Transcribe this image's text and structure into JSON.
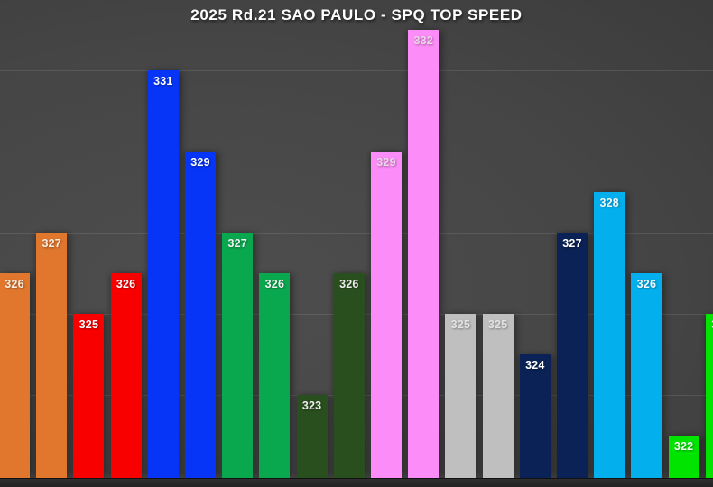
{
  "chart_data": {
    "type": "bar",
    "title": "2025 Rd.21 SAO PAULO - SPQ TOP SPEED",
    "xlabel": "",
    "ylabel": "",
    "ylim": [
      321,
      333
    ],
    "gridline_values": [
      331,
      329,
      327,
      325,
      323
    ],
    "grid": "horizontal-only",
    "legend_position": "none",
    "x_tick_labels": "none",
    "y_tick_labels": "none",
    "value_labels": "inside-top-of-bar",
    "bars": [
      {
        "value": 326,
        "color": "#E1762D",
        "label_color": "#F8EDE2",
        "clipped": "left"
      },
      {
        "value": 327,
        "color": "#E1762D",
        "label_color": "#F8EDE2",
        "clipped": ""
      },
      {
        "value": 325,
        "color": "#F80000",
        "label_color": "#FFFFFF",
        "clipped": ""
      },
      {
        "value": 326,
        "color": "#F80000",
        "label_color": "#FFFFFF",
        "clipped": ""
      },
      {
        "value": 331,
        "color": "#0635F7",
        "label_color": "#FFFFFF",
        "clipped": ""
      },
      {
        "value": 329,
        "color": "#0635F7",
        "label_color": "#FFFFFF",
        "clipped": ""
      },
      {
        "value": 327,
        "color": "#0AA84E",
        "label_color": "#F2F2F2",
        "clipped": ""
      },
      {
        "value": 326,
        "color": "#0AA84E",
        "label_color": "#F2F2F2",
        "clipped": ""
      },
      {
        "value": 323,
        "color": "#2A4F1E",
        "label_color": "#EDEDED",
        "clipped": ""
      },
      {
        "value": 326,
        "color": "#2A4F1E",
        "label_color": "#EDEDED",
        "clipped": ""
      },
      {
        "value": 329,
        "color": "#FC8DF8",
        "label_color": "#EBD5E8",
        "clipped": ""
      },
      {
        "value": 332,
        "color": "#FC8DF8",
        "label_color": "#EBD5E8",
        "clipped": ""
      },
      {
        "value": 325,
        "color": "#BFBFBF",
        "label_color": "#E3E3E3",
        "clipped": ""
      },
      {
        "value": 325,
        "color": "#BFBFBF",
        "label_color": "#E3E3E3",
        "clipped": ""
      },
      {
        "value": 324,
        "color": "#0B2256",
        "label_color": "#FFFFFF",
        "clipped": ""
      },
      {
        "value": 327,
        "color": "#0B2256",
        "label_color": "#FFFFFF",
        "clipped": ""
      },
      {
        "value": 328,
        "color": "#04AFEE",
        "label_color": "#F0F8FF",
        "clipped": ""
      },
      {
        "value": 326,
        "color": "#04AFEE",
        "label_color": "#F0F8FF",
        "clipped": ""
      },
      {
        "value": 322,
        "color": "#00E400",
        "label_color": "#F2FFF2",
        "clipped": ""
      },
      {
        "value": 325,
        "color": "#00E400",
        "label_color": "#F2FFF2",
        "clipped": "right"
      }
    ]
  },
  "style": {
    "background_light": "#4e4e4e",
    "background_dark": "#2c2c2c",
    "grid_color": "rgba(255,255,255,0.10)",
    "title_color": "#ffffff",
    "baseline_color": "#232323"
  }
}
